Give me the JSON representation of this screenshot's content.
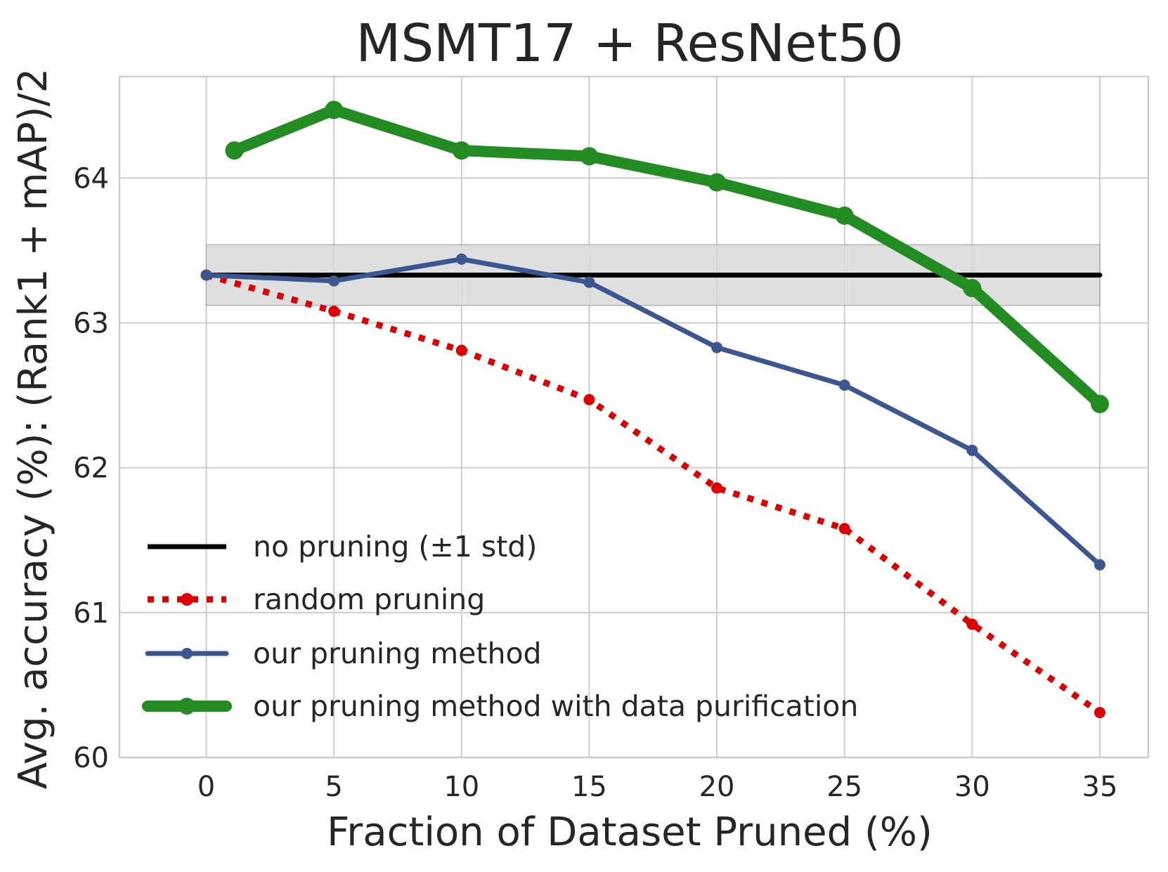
{
  "chart_data": {
    "type": "line",
    "title": "MSMT17 + ResNet50",
    "xlabel": "Fraction of Dataset Pruned (%)",
    "ylabel": "Avg. accuracy (%): (Rank1 + mAP)/2",
    "xlim": [
      -3.4,
      36.9
    ],
    "ylim": [
      60,
      64.7
    ],
    "xticks": [
      0,
      5,
      10,
      15,
      20,
      25,
      30,
      35
    ],
    "yticks": [
      60,
      61,
      62,
      63,
      64
    ],
    "grid": true,
    "legend_position": "lower-left",
    "baseline": {
      "name": "no pruning (±1 std)",
      "color": "#000000",
      "x": [
        0,
        35
      ],
      "value": 63.33,
      "std_band": [
        63.12,
        63.54
      ],
      "band_color": "#d9d9d9"
    },
    "series": [
      {
        "name": "random pruning",
        "color": "#dd0000",
        "style": "dotted",
        "x": [
          0,
          5,
          10,
          15,
          20,
          25,
          30,
          35
        ],
        "values": [
          63.33,
          63.08,
          62.81,
          62.47,
          61.86,
          61.58,
          60.92,
          60.31
        ]
      },
      {
        "name": "our pruning method",
        "color": "#3b5690",
        "style": "solid",
        "x": [
          0,
          5,
          10,
          15,
          20,
          25,
          30,
          35
        ],
        "values": [
          63.33,
          63.29,
          63.44,
          63.28,
          62.83,
          62.57,
          62.12,
          61.33
        ]
      },
      {
        "name": "our pruning method with data purification",
        "color": "#228b22",
        "style": "thick",
        "x": [
          1.1,
          5,
          10,
          15,
          20,
          25,
          30,
          35
        ],
        "values": [
          64.19,
          64.47,
          64.19,
          64.15,
          63.97,
          63.74,
          63.24,
          62.44
        ]
      }
    ]
  }
}
